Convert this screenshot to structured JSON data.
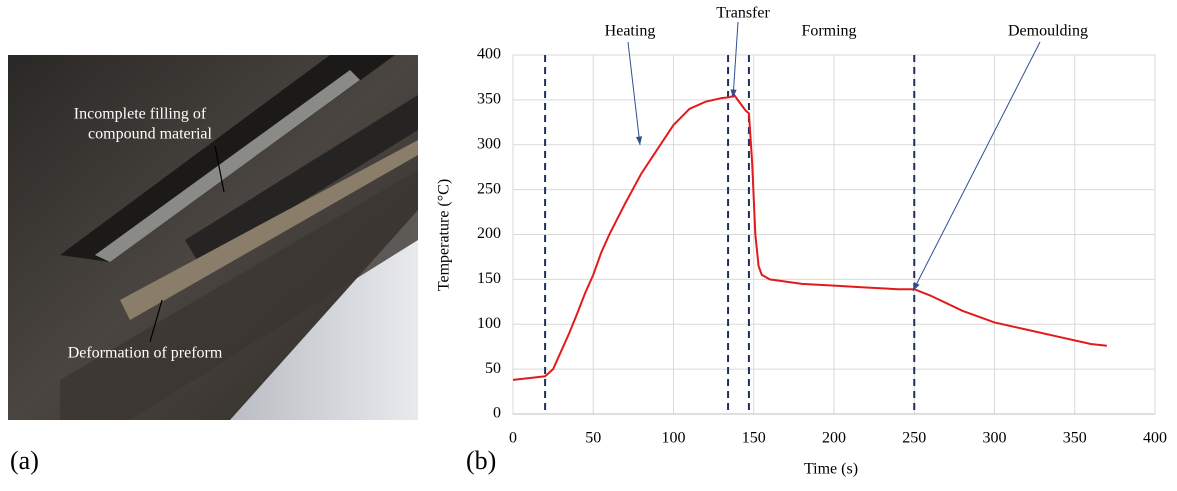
{
  "panels": {
    "a": "(a)",
    "b": "(b)"
  },
  "photo": {
    "annotations": [
      "Incomplete filling of",
      "compound material",
      "Deformation of preform"
    ]
  },
  "chart_data": {
    "type": "line",
    "x_label": "Time (s)",
    "y_label": "Temperature (°C)",
    "xlim": [
      0,
      400
    ],
    "xticks": [
      0,
      50,
      100,
      150,
      200,
      250,
      300,
      350,
      400
    ],
    "ylim": [
      0,
      400
    ],
    "yticks": [
      0,
      50,
      100,
      150,
      200,
      250,
      300,
      350,
      400
    ],
    "grid": true,
    "phase_markers": [
      20,
      134,
      147,
      250
    ],
    "annotations": [
      "Heating",
      "Transfer",
      "Forming",
      "Demoulding"
    ],
    "series": [
      {
        "color": "#e31a1c",
        "x": [
          0,
          10,
          20,
          25,
          30,
          35,
          40,
          45,
          50,
          55,
          60,
          70,
          80,
          90,
          100,
          110,
          120,
          130,
          135,
          138,
          140,
          145,
          147,
          149,
          151,
          153,
          155,
          160,
          180,
          200,
          220,
          240,
          250,
          260,
          280,
          300,
          320,
          340,
          360,
          370
        ],
        "values": [
          38,
          40,
          42,
          50,
          70,
          90,
          112,
          135,
          155,
          180,
          200,
          235,
          268,
          295,
          322,
          340,
          348,
          352,
          353,
          355,
          350,
          338,
          335,
          280,
          200,
          165,
          155,
          150,
          145,
          143,
          141,
          139,
          139,
          132,
          115,
          102,
          94,
          86,
          78,
          76
        ]
      }
    ]
  }
}
